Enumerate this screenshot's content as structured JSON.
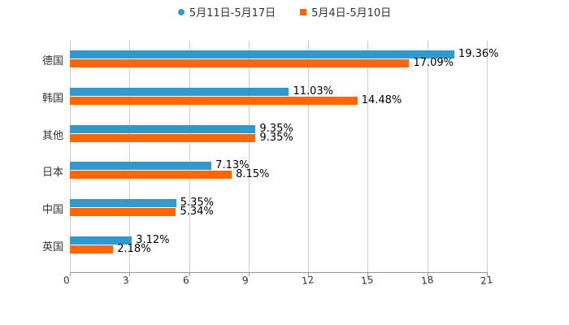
{
  "chart_data": {
    "type": "bar",
    "orientation": "horizontal",
    "title": "",
    "categories": [
      "德国",
      "韩国",
      "其他",
      "日本",
      "中国",
      "英国"
    ],
    "series": [
      {
        "name": "5月11日-5月17日",
        "color": "#3399cc",
        "values": [
          19.36,
          11.03,
          9.35,
          7.13,
          5.35,
          3.12
        ],
        "labels": [
          "19.36%",
          "11.03%",
          "9.35%",
          "7.13%",
          "5.35%",
          "3.12%"
        ]
      },
      {
        "name": "5月4日-5月10日",
        "color": "#ff6600",
        "values": [
          17.09,
          14.48,
          9.35,
          8.15,
          5.34,
          2.18
        ],
        "labels": [
          "17.09%",
          "14.48%",
          "9.35%",
          "8.15%",
          "5.34%",
          "2.18%"
        ]
      }
    ],
    "xticks": [
      "0",
      "3",
      "6",
      "9",
      "12",
      "15",
      "18",
      "21"
    ],
    "xlim": [
      0,
      21
    ],
    "grid": true,
    "legend_position": "top"
  }
}
